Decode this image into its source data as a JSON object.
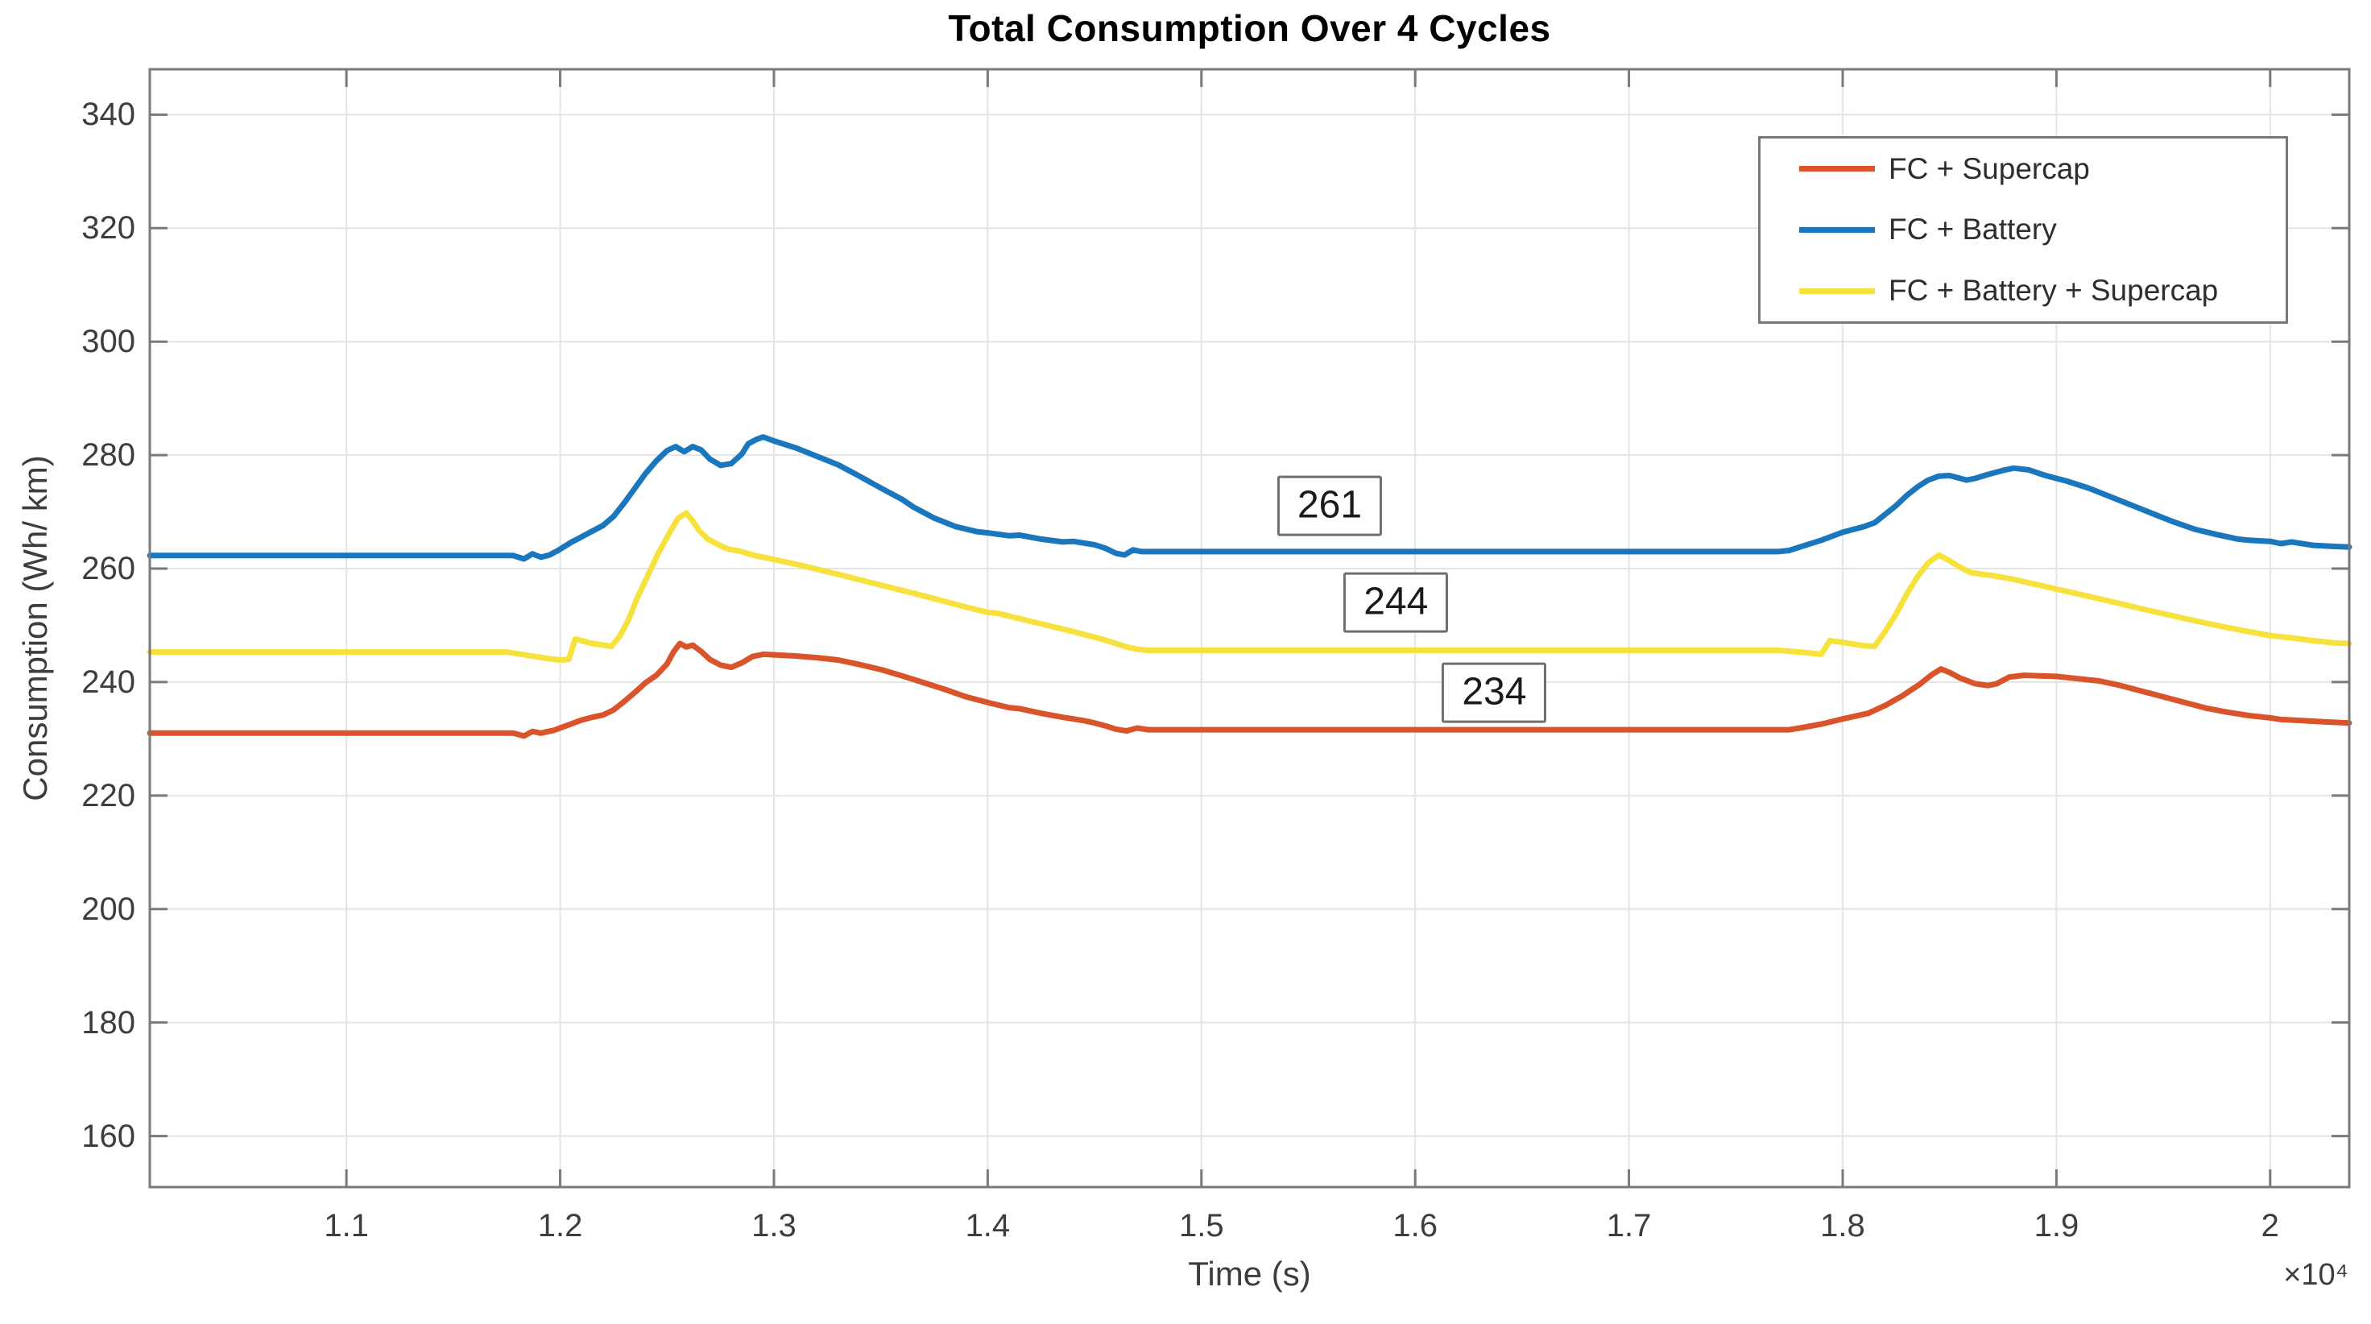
{
  "chart_data": {
    "type": "line",
    "title": "Total Consumption Over 4 Cycles",
    "xlabel": "Time (s)",
    "ylabel": "Consumption (Wh/ km)",
    "x_axis_multiplier": "×10⁴",
    "xlim": [
      10080,
      20370
    ],
    "ylim": [
      151,
      348
    ],
    "grid": true,
    "legend_position": "northeast",
    "axis_color": "#7a7a7a",
    "grid_color": "#e4e4e4",
    "tick_label_color": "#3d3d3d",
    "x_ticks": [
      {
        "value": 11000,
        "label": "1.1"
      },
      {
        "value": 12000,
        "label": "1.2"
      },
      {
        "value": 13000,
        "label": "1.3"
      },
      {
        "value": 14000,
        "label": "1.4"
      },
      {
        "value": 15000,
        "label": "1.5"
      },
      {
        "value": 16000,
        "label": "1.6"
      },
      {
        "value": 17000,
        "label": "1.7"
      },
      {
        "value": 18000,
        "label": "1.8"
      },
      {
        "value": 19000,
        "label": "1.9"
      },
      {
        "value": 20000,
        "label": "2"
      }
    ],
    "y_ticks": [
      {
        "value": 160,
        "label": "160"
      },
      {
        "value": 180,
        "label": "180"
      },
      {
        "value": 200,
        "label": "200"
      },
      {
        "value": 220,
        "label": "220"
      },
      {
        "value": 240,
        "label": "240"
      },
      {
        "value": 260,
        "label": "260"
      },
      {
        "value": 280,
        "label": "280"
      },
      {
        "value": 300,
        "label": "300"
      },
      {
        "value": 320,
        "label": "320"
      },
      {
        "value": 340,
        "label": "340"
      }
    ],
    "series": [
      {
        "name": "FC + Supercap",
        "color": "#d9542b",
        "points": [
          [
            10080,
            231.0
          ],
          [
            11500,
            231.0
          ],
          [
            11780,
            231.0
          ],
          [
            11830,
            230.5
          ],
          [
            11870,
            231.3
          ],
          [
            11910,
            231.0
          ],
          [
            11970,
            231.5
          ],
          [
            12050,
            232.6
          ],
          [
            12100,
            233.3
          ],
          [
            12150,
            233.8
          ],
          [
            12200,
            234.2
          ],
          [
            12250,
            235.1
          ],
          [
            12300,
            236.6
          ],
          [
            12350,
            238.2
          ],
          [
            12400,
            239.9
          ],
          [
            12450,
            241.2
          ],
          [
            12500,
            243.2
          ],
          [
            12530,
            245.3
          ],
          [
            12560,
            246.8
          ],
          [
            12590,
            246.2
          ],
          [
            12620,
            246.5
          ],
          [
            12660,
            245.4
          ],
          [
            12700,
            244.0
          ],
          [
            12750,
            243.0
          ],
          [
            12800,
            242.6
          ],
          [
            12850,
            243.4
          ],
          [
            12900,
            244.5
          ],
          [
            12950,
            244.9
          ],
          [
            13000,
            244.8
          ],
          [
            13100,
            244.6
          ],
          [
            13200,
            244.3
          ],
          [
            13300,
            243.9
          ],
          [
            13400,
            243.1
          ],
          [
            13500,
            242.2
          ],
          [
            13600,
            241.1
          ],
          [
            13700,
            239.9
          ],
          [
            13800,
            238.7
          ],
          [
            13900,
            237.4
          ],
          [
            14000,
            236.4
          ],
          [
            14100,
            235.5
          ],
          [
            14150,
            235.3
          ],
          [
            14250,
            234.5
          ],
          [
            14350,
            233.8
          ],
          [
            14450,
            233.2
          ],
          [
            14500,
            232.8
          ],
          [
            14550,
            232.3
          ],
          [
            14600,
            231.7
          ],
          [
            14650,
            231.4
          ],
          [
            14700,
            231.9
          ],
          [
            14750,
            231.6
          ],
          [
            15000,
            231.6
          ],
          [
            17750,
            231.6
          ],
          [
            17800,
            231.9
          ],
          [
            17900,
            232.6
          ],
          [
            18000,
            233.5
          ],
          [
            18060,
            234.0
          ],
          [
            18120,
            234.5
          ],
          [
            18200,
            235.9
          ],
          [
            18280,
            237.6
          ],
          [
            18360,
            239.6
          ],
          [
            18420,
            241.4
          ],
          [
            18460,
            242.3
          ],
          [
            18500,
            241.7
          ],
          [
            18550,
            240.7
          ],
          [
            18620,
            239.7
          ],
          [
            18680,
            239.4
          ],
          [
            18720,
            239.7
          ],
          [
            18780,
            240.9
          ],
          [
            18850,
            241.2
          ],
          [
            19000,
            241.0
          ],
          [
            19100,
            240.6
          ],
          [
            19200,
            240.2
          ],
          [
            19300,
            239.4
          ],
          [
            19400,
            238.4
          ],
          [
            19500,
            237.4
          ],
          [
            19600,
            236.4
          ],
          [
            19700,
            235.4
          ],
          [
            19800,
            234.7
          ],
          [
            19900,
            234.1
          ],
          [
            20000,
            233.7
          ],
          [
            20050,
            233.4
          ],
          [
            20150,
            233.2
          ],
          [
            20250,
            233.0
          ],
          [
            20370,
            232.8
          ]
        ]
      },
      {
        "name": "FC + Battery",
        "color": "#1a77bd",
        "points": [
          [
            10080,
            262.3
          ],
          [
            11500,
            262.3
          ],
          [
            11780,
            262.3
          ],
          [
            11830,
            261.7
          ],
          [
            11870,
            262.6
          ],
          [
            11910,
            262.0
          ],
          [
            11950,
            262.4
          ],
          [
            11990,
            263.2
          ],
          [
            12050,
            264.6
          ],
          [
            12100,
            265.6
          ],
          [
            12150,
            266.6
          ],
          [
            12200,
            267.6
          ],
          [
            12250,
            269.2
          ],
          [
            12300,
            271.6
          ],
          [
            12350,
            274.2
          ],
          [
            12400,
            276.8
          ],
          [
            12450,
            279.0
          ],
          [
            12500,
            280.8
          ],
          [
            12540,
            281.5
          ],
          [
            12580,
            280.6
          ],
          [
            12620,
            281.5
          ],
          [
            12660,
            280.9
          ],
          [
            12700,
            279.3
          ],
          [
            12750,
            278.2
          ],
          [
            12800,
            278.5
          ],
          [
            12850,
            280.2
          ],
          [
            12880,
            282.0
          ],
          [
            12920,
            282.8
          ],
          [
            12950,
            283.2
          ],
          [
            13000,
            282.5
          ],
          [
            13100,
            281.3
          ],
          [
            13200,
            279.8
          ],
          [
            13300,
            278.3
          ],
          [
            13400,
            276.3
          ],
          [
            13500,
            274.2
          ],
          [
            13600,
            272.2
          ],
          [
            13650,
            270.9
          ],
          [
            13750,
            268.9
          ],
          [
            13850,
            267.4
          ],
          [
            13950,
            266.5
          ],
          [
            14000,
            266.3
          ],
          [
            14100,
            265.8
          ],
          [
            14150,
            265.9
          ],
          [
            14250,
            265.2
          ],
          [
            14350,
            264.7
          ],
          [
            14400,
            264.8
          ],
          [
            14500,
            264.2
          ],
          [
            14550,
            263.6
          ],
          [
            14600,
            262.7
          ],
          [
            14640,
            262.4
          ],
          [
            14680,
            263.3
          ],
          [
            14720,
            263.0
          ],
          [
            15000,
            263.0
          ],
          [
            17700,
            263.0
          ],
          [
            17750,
            263.2
          ],
          [
            17800,
            263.8
          ],
          [
            17900,
            265.0
          ],
          [
            18000,
            266.4
          ],
          [
            18100,
            267.4
          ],
          [
            18150,
            268.1
          ],
          [
            18200,
            269.6
          ],
          [
            18250,
            271.1
          ],
          [
            18300,
            272.9
          ],
          [
            18350,
            274.4
          ],
          [
            18400,
            275.6
          ],
          [
            18450,
            276.3
          ],
          [
            18500,
            276.4
          ],
          [
            18550,
            275.9
          ],
          [
            18580,
            275.6
          ],
          [
            18620,
            275.9
          ],
          [
            18680,
            276.6
          ],
          [
            18750,
            277.3
          ],
          [
            18800,
            277.7
          ],
          [
            18870,
            277.4
          ],
          [
            18950,
            276.4
          ],
          [
            19050,
            275.4
          ],
          [
            19150,
            274.2
          ],
          [
            19250,
            272.7
          ],
          [
            19350,
            271.2
          ],
          [
            19450,
            269.7
          ],
          [
            19550,
            268.2
          ],
          [
            19650,
            266.9
          ],
          [
            19750,
            266.0
          ],
          [
            19850,
            265.2
          ],
          [
            19900,
            265.0
          ],
          [
            20000,
            264.8
          ],
          [
            20050,
            264.4
          ],
          [
            20100,
            264.7
          ],
          [
            20200,
            264.1
          ],
          [
            20300,
            263.9
          ],
          [
            20370,
            263.8
          ]
        ]
      },
      {
        "name": "FC + Battery + Supercap",
        "color": "#f7e13c",
        "points": [
          [
            10080,
            245.3
          ],
          [
            11500,
            245.3
          ],
          [
            11750,
            245.3
          ],
          [
            11800,
            245.0
          ],
          [
            11850,
            244.7
          ],
          [
            11900,
            244.4
          ],
          [
            11950,
            244.1
          ],
          [
            12000,
            243.9
          ],
          [
            12040,
            244.0
          ],
          [
            12070,
            247.6
          ],
          [
            12110,
            247.2
          ],
          [
            12150,
            246.8
          ],
          [
            12200,
            246.5
          ],
          [
            12240,
            246.3
          ],
          [
            12280,
            248.2
          ],
          [
            12320,
            251.0
          ],
          [
            12360,
            254.8
          ],
          [
            12410,
            258.8
          ],
          [
            12460,
            262.8
          ],
          [
            12510,
            266.2
          ],
          [
            12550,
            268.8
          ],
          [
            12590,
            269.8
          ],
          [
            12620,
            268.4
          ],
          [
            12650,
            266.7
          ],
          [
            12690,
            265.2
          ],
          [
            12740,
            264.2
          ],
          [
            12790,
            263.4
          ],
          [
            12840,
            263.1
          ],
          [
            12900,
            262.4
          ],
          [
            12950,
            262.0
          ],
          [
            13100,
            260.8
          ],
          [
            13300,
            259.0
          ],
          [
            13500,
            257.1
          ],
          [
            13700,
            255.2
          ],
          [
            13900,
            253.2
          ],
          [
            14000,
            252.3
          ],
          [
            14050,
            252.1
          ],
          [
            14200,
            250.7
          ],
          [
            14400,
            248.9
          ],
          [
            14550,
            247.4
          ],
          [
            14650,
            246.2
          ],
          [
            14700,
            245.8
          ],
          [
            14750,
            245.6
          ],
          [
            15000,
            245.6
          ],
          [
            17700,
            245.6
          ],
          [
            17800,
            245.3
          ],
          [
            17850,
            245.1
          ],
          [
            17900,
            244.9
          ],
          [
            17940,
            247.3
          ],
          [
            18000,
            247.0
          ],
          [
            18050,
            246.7
          ],
          [
            18100,
            246.4
          ],
          [
            18150,
            246.3
          ],
          [
            18200,
            249.0
          ],
          [
            18250,
            252.0
          ],
          [
            18300,
            255.5
          ],
          [
            18350,
            258.6
          ],
          [
            18400,
            261.0
          ],
          [
            18450,
            262.4
          ],
          [
            18500,
            261.4
          ],
          [
            18550,
            260.2
          ],
          [
            18600,
            259.3
          ],
          [
            18650,
            259.0
          ],
          [
            18700,
            258.8
          ],
          [
            18800,
            258.1
          ],
          [
            19000,
            256.4
          ],
          [
            19200,
            254.7
          ],
          [
            19400,
            252.9
          ],
          [
            19600,
            251.2
          ],
          [
            19800,
            249.6
          ],
          [
            20000,
            248.2
          ],
          [
            20100,
            247.8
          ],
          [
            20200,
            247.3
          ],
          [
            20300,
            246.9
          ],
          [
            20370,
            246.8
          ]
        ]
      }
    ],
    "legend_order": [
      "FC + Supercap",
      "FC + Battery",
      "FC + Battery + Supercap"
    ],
    "annotations": [
      {
        "label": "261",
        "x": 15600,
        "y": 271.1
      },
      {
        "label": "244",
        "x": 15910,
        "y": 254.0
      },
      {
        "label": "234",
        "x": 16370,
        "y": 238.1
      }
    ]
  }
}
